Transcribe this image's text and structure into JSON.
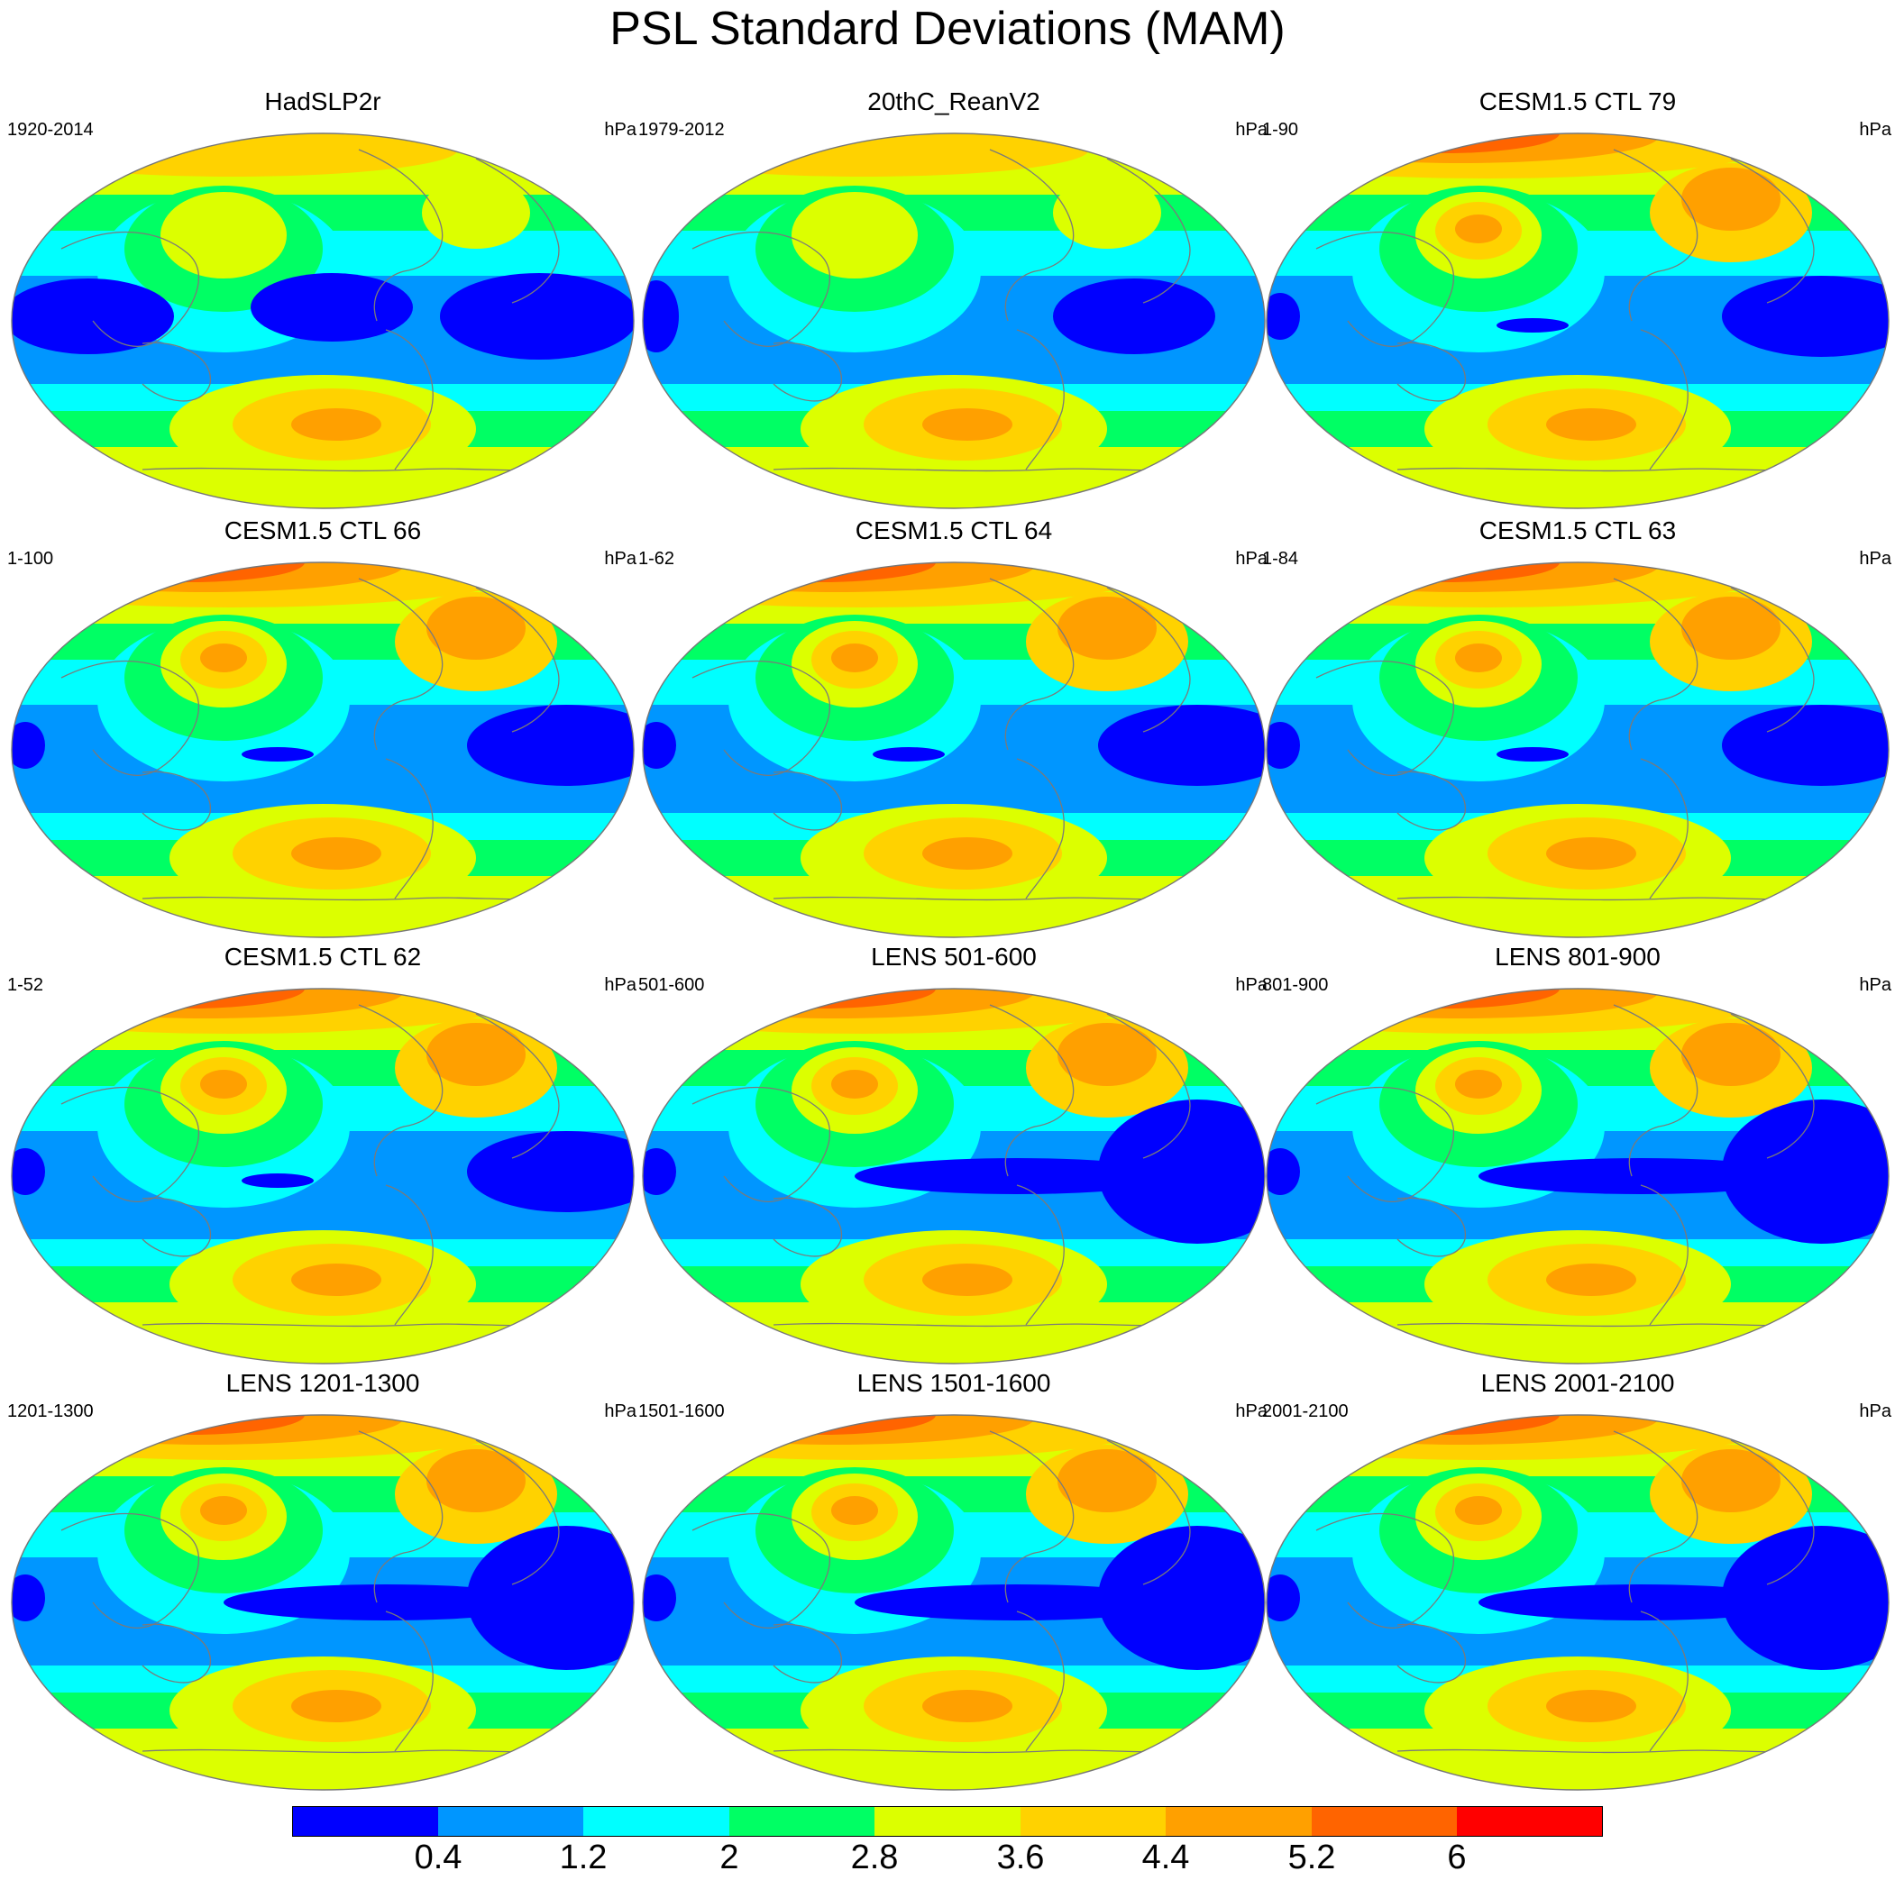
{
  "title": "PSL Standard Deviations (MAM)",
  "units": "hPa",
  "colorbar": {
    "levels": [
      "0.4",
      "1.2",
      "2",
      "2.8",
      "3.6",
      "4.4",
      "5.2",
      "6"
    ],
    "colors": [
      "#0000ff",
      "#0096ff",
      "#00ffff",
      "#00ff64",
      "#dcff00",
      "#ffd200",
      "#ffa000",
      "#ff6400",
      "#ff0000"
    ]
  },
  "panels": [
    {
      "title": "HadSLP2r",
      "period": "1920-2014",
      "units": "hPa"
    },
    {
      "title": "20thC_ReanV2",
      "period": "1979-2012",
      "units": "hPa"
    },
    {
      "title": "CESM1.5 CTL 79",
      "period": "1-90",
      "units": "hPa"
    },
    {
      "title": "CESM1.5 CTL 66",
      "period": "1-100",
      "units": "hPa"
    },
    {
      "title": "CESM1.5 CTL 64",
      "period": "1-62",
      "units": "hPa"
    },
    {
      "title": "CESM1.5 CTL 63",
      "period": "1-84",
      "units": "hPa"
    },
    {
      "title": "CESM1.5 CTL 62",
      "period": "1-52",
      "units": "hPa"
    },
    {
      "title": "LENS 501-600",
      "period": "501-600",
      "units": "hPa"
    },
    {
      "title": "LENS 801-900",
      "period": "801-900",
      "units": "hPa"
    },
    {
      "title": "LENS 1201-1300",
      "period": "1201-1300",
      "units": "hPa"
    },
    {
      "title": "LENS 1501-1600",
      "period": "1501-1600",
      "units": "hPa"
    },
    {
      "title": "LENS 2001-2100",
      "period": "2001-2100",
      "units": "hPa"
    }
  ]
}
